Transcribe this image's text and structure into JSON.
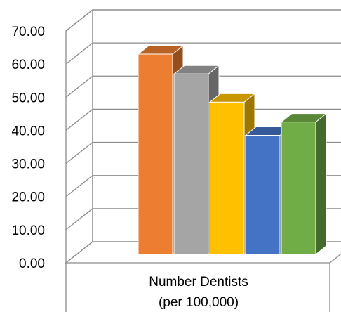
{
  "chart_data": {
    "type": "bar",
    "style": "3d-clustered-column",
    "categories": [
      "Number Dentists (per 100,000)"
    ],
    "category_label_lines": [
      "Number Dentists",
      "(per 100,000)"
    ],
    "ylim": [
      0,
      70
    ],
    "yticks": [
      "0.00",
      "10.00",
      "20.00",
      "30.00",
      "40.00",
      "50.00",
      "60.00",
      "70.00"
    ],
    "grid": true,
    "legend": "none",
    "series": [
      {
        "values": [
          63.0
        ],
        "color": "#ED7D31"
      },
      {
        "values": [
          57.0
        ],
        "color": "#A5A5A5"
      },
      {
        "values": [
          48.5
        ],
        "color": "#FFC000"
      },
      {
        "values": [
          38.5
        ],
        "color": "#4472C4"
      },
      {
        "values": [
          42.5
        ],
        "color": "#70AD47"
      }
    ]
  }
}
